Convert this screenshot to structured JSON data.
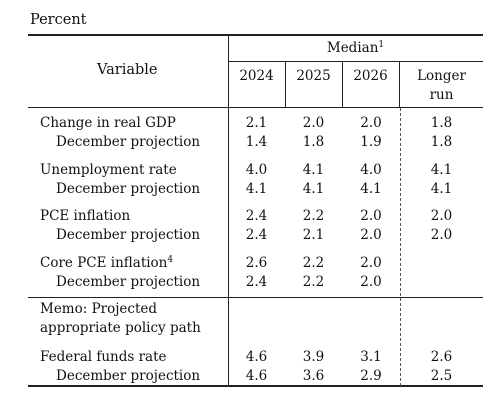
{
  "units_label": "Percent",
  "header": {
    "variable_label": "Variable",
    "median_label": "Median",
    "median_note": "1",
    "years": [
      "2024",
      "2025",
      "2026"
    ],
    "longer_run_line1": "Longer",
    "longer_run_line2": "run"
  },
  "groups": [
    {
      "label": "Change in real GDP",
      "note": "",
      "values": [
        "2.1",
        "2.0",
        "2.0",
        "1.8"
      ],
      "sub_label": "December projection",
      "sub_values": [
        "1.4",
        "1.8",
        "1.9",
        "1.8"
      ]
    },
    {
      "label": "Unemployment rate",
      "note": "",
      "values": [
        "4.0",
        "4.1",
        "4.0",
        "4.1"
      ],
      "sub_label": "December projection",
      "sub_values": [
        "4.1",
        "4.1",
        "4.1",
        "4.1"
      ]
    },
    {
      "label": "PCE inflation",
      "note": "",
      "values": [
        "2.4",
        "2.2",
        "2.0",
        "2.0"
      ],
      "sub_label": "December projection",
      "sub_values": [
        "2.4",
        "2.1",
        "2.0",
        "2.0"
      ]
    },
    {
      "label": "Core PCE inflation",
      "note": "4",
      "values": [
        "2.6",
        "2.2",
        "2.0",
        ""
      ],
      "sub_label": "December projection",
      "sub_values": [
        "2.4",
        "2.2",
        "2.0",
        ""
      ]
    }
  ],
  "memo": {
    "line1": "Memo: Projected",
    "line2": "appropriate policy path"
  },
  "funds": {
    "label": "Federal funds rate",
    "values": [
      "4.6",
      "3.9",
      "3.1",
      "2.6"
    ],
    "sub_label": "December projection",
    "sub_values": [
      "4.6",
      "3.6",
      "2.9",
      "2.5"
    ]
  }
}
